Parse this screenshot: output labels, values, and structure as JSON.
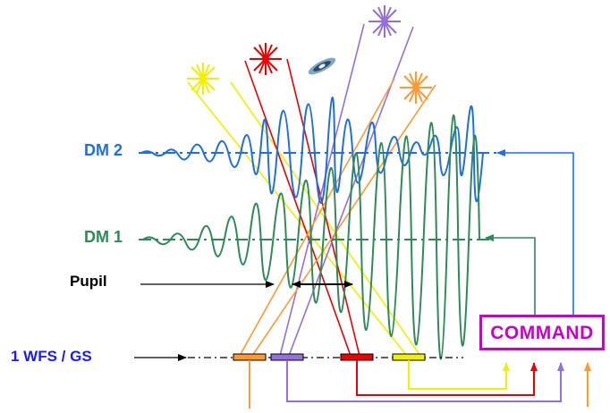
{
  "labels": {
    "dm2": "DM 2",
    "dm1": "DM 1",
    "pupil": "Pupil",
    "wfs": "1 WFS / GS",
    "command": "COMMAND"
  },
  "colors": {
    "dm2": "#1f6fe0",
    "dm1": "#2e8b57",
    "pupil": "#000000",
    "wfs": "#1a1aff",
    "command": "#cc00cc",
    "yellow": "#f0f000",
    "red": "#ee0000",
    "purple": "#9370db",
    "orange": "#ff9933",
    "blue_feedback": "#1f6fe0",
    "green_feedback": "#2e8b57"
  },
  "icons": [
    "yellow-star-icon",
    "red-star-icon",
    "galaxy-icon",
    "purple-star-icon",
    "orange-star-icon"
  ]
}
